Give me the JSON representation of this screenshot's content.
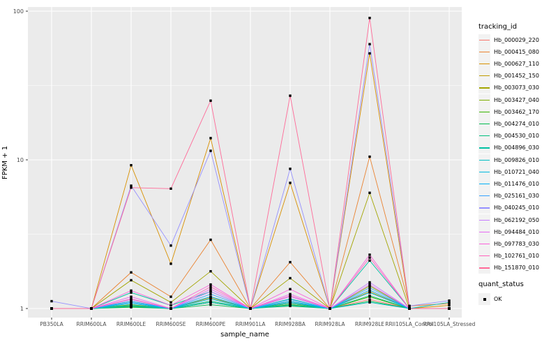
{
  "figure": {
    "background": "#FFFFFF",
    "panel_background": "#EBEBEB",
    "grid_color": "#FFFFFF",
    "axis_text_color": "#4D4D4D",
    "tick_mark_color": "#333333",
    "legend_key_background": "#F2F2F2",
    "marker_color": "#000000"
  },
  "chart_data": {
    "type": "line",
    "title": "",
    "xlabel": "sample_name",
    "ylabel": "FPKM + 1",
    "y_scale": "log10",
    "y_ticks": [
      1,
      10,
      100
    ],
    "y_minor_gridlines": [
      3.162,
      31.62
    ],
    "ylim": [
      0.87,
      107
    ],
    "grid": "on",
    "legend_position": "right",
    "marker": {
      "shape": "square",
      "color": "#000000",
      "size": 3.4
    },
    "categories": [
      "PB350LA",
      "RRIM600LA",
      "RRIM600LE",
      "RRIM600SE",
      "RRIM600PE",
      "RRIM901LA",
      "RRIM928BA",
      "RRIM928LA",
      "RRIM928LE",
      "RRII105LA_Control",
      "RRII105LA_Stressed"
    ],
    "series": [
      {
        "name": "Hb_000029_220",
        "color": "#F8766D",
        "values": [
          1,
          1,
          1.05,
          1,
          1.1,
          1,
          1.08,
          1,
          1.15,
          1,
          1
        ]
      },
      {
        "name": "Hb_000415_080",
        "color": "#EA8331",
        "values": [
          1,
          1,
          1.75,
          1.2,
          2.9,
          1,
          2.05,
          1,
          10.5,
          1.04,
          1.08
        ]
      },
      {
        "name": "Hb_000627_110",
        "color": "#D89000",
        "values": [
          1,
          1,
          9.2,
          2.0,
          14.0,
          1,
          7.0,
          1,
          52.0,
          1,
          1.05
        ]
      },
      {
        "name": "Hb_001452_150",
        "color": "#C09B00",
        "values": [
          1,
          1,
          1.12,
          1,
          1.18,
          1,
          1.1,
          1,
          1.3,
          1,
          1
        ]
      },
      {
        "name": "Hb_003073_030",
        "color": "#A3A500",
        "values": [
          1,
          1,
          1.55,
          1.1,
          1.78,
          1,
          1.6,
          1,
          6.0,
          1,
          1
        ]
      },
      {
        "name": "Hb_003427_040",
        "color": "#7CAE00",
        "values": [
          1,
          1,
          1.06,
          1,
          1.2,
          1,
          1.12,
          1,
          1.42,
          1,
          1
        ]
      },
      {
        "name": "Hb_003462_170",
        "color": "#39B600",
        "values": [
          1,
          1,
          1.03,
          1,
          1.1,
          1,
          1.06,
          1,
          1.2,
          1,
          1
        ]
      },
      {
        "name": "Hb_004274_010",
        "color": "#00BB4E",
        "values": [
          1,
          1,
          1.02,
          1,
          1.06,
          1,
          1.04,
          1,
          1.12,
          1,
          1
        ]
      },
      {
        "name": "Hb_004530_010",
        "color": "#00BF7D",
        "values": [
          1,
          1,
          1.05,
          1,
          1.12,
          1,
          1.08,
          1,
          1.22,
          1,
          1
        ]
      },
      {
        "name": "Hb_004896_030",
        "color": "#00C1A3",
        "values": [
          1,
          1,
          1.28,
          1.05,
          1.3,
          1,
          1.16,
          1,
          2.1,
          1,
          1
        ]
      },
      {
        "name": "Hb_009826_010",
        "color": "#00BFC4",
        "values": [
          1,
          1,
          1.04,
          1,
          1.1,
          1,
          1.05,
          1,
          1.1,
          1,
          1.1
        ]
      },
      {
        "name": "Hb_010721_040",
        "color": "#00BAE0",
        "values": [
          1,
          1,
          1.08,
          1,
          1.16,
          1,
          1.1,
          1,
          1.28,
          1,
          1
        ]
      },
      {
        "name": "Hb_011476_010",
        "color": "#00B0F6",
        "values": [
          1,
          1,
          1.1,
          1,
          1.2,
          1,
          1.12,
          1,
          1.33,
          1,
          1
        ]
      },
      {
        "name": "Hb_025161_030",
        "color": "#35A2FF",
        "values": [
          1,
          1,
          1.12,
          1,
          1.25,
          1,
          1.15,
          1,
          1.38,
          1,
          1
        ]
      },
      {
        "name": "Hb_040245_010",
        "color": "#9590FF",
        "values": [
          1.12,
          1,
          6.7,
          2.65,
          11.5,
          1,
          8.7,
          1,
          60.0,
          1.04,
          1.13
        ]
      },
      {
        "name": "Hb_062192_050",
        "color": "#C77CFF",
        "values": [
          1,
          1,
          1.15,
          1,
          1.3,
          1,
          1.2,
          1,
          1.5,
          1,
          1
        ]
      },
      {
        "name": "Hb_094484_010",
        "color": "#E76BF3",
        "values": [
          1,
          1,
          1.2,
          1,
          1.35,
          1,
          1.25,
          1,
          1.45,
          1,
          1
        ]
      },
      {
        "name": "Hb_097783_030",
        "color": "#FA62DB",
        "values": [
          1,
          1,
          1.32,
          1.05,
          1.45,
          1,
          1.35,
          1,
          2.3,
          1,
          1
        ]
      },
      {
        "name": "Hb_102761_010",
        "color": "#FF62BC",
        "values": [
          1,
          1,
          1.16,
          1,
          1.4,
          1,
          1.22,
          1,
          2.2,
          1,
          1
        ]
      },
      {
        "name": "Hb_151870_010",
        "color": "#FF6A98",
        "values": [
          1,
          1,
          6.5,
          6.4,
          25.0,
          1,
          27.0,
          1,
          90.0,
          1,
          1
        ]
      }
    ]
  },
  "legend": {
    "tracking_title": "tracking_id",
    "quant_title": "quant_status",
    "quant_items": [
      {
        "label": "OK"
      }
    ]
  }
}
